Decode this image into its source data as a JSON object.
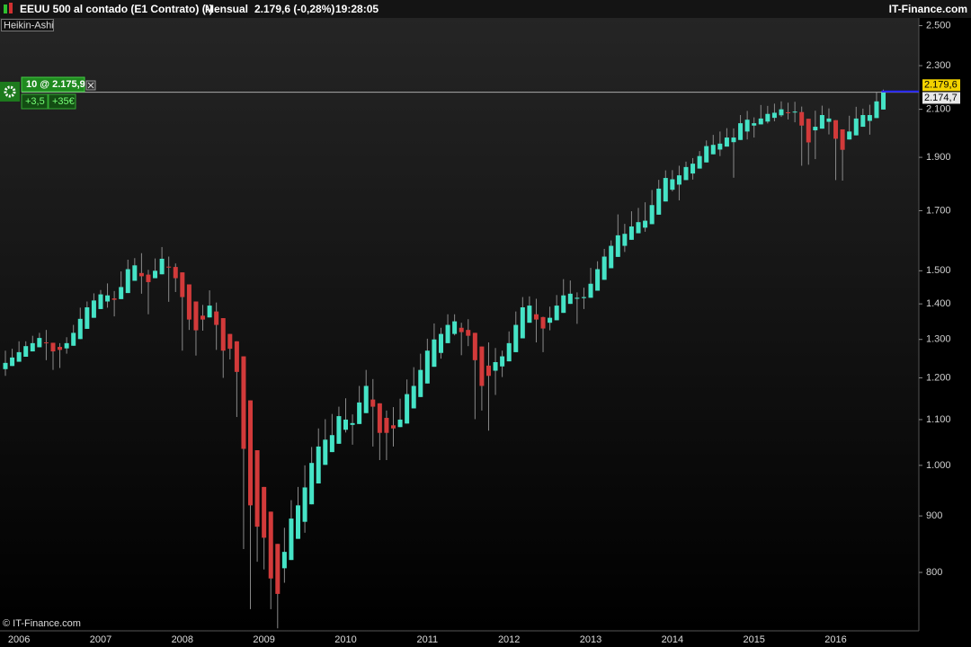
{
  "header": {
    "instrument": "EEUU 500 al contado (E1 Contrato) (-)",
    "period": "Mensual",
    "price": "2.179,6 (-0,28%)",
    "time": "19:28:05",
    "brand": "IT-Finance.com"
  },
  "position": {
    "label": "10 @ 2.175,9",
    "price": 2175.9,
    "points": "+3,5",
    "profit": "+35€"
  },
  "price_tags": [
    {
      "value": 2179.6,
      "label": "2.179,6"
    },
    {
      "value": 2174.7,
      "label": "2.174,7"
    }
  ],
  "watermark": "© IT-Finance.com",
  "chart_data": {
    "type": "candlestick",
    "title": "Heikin-Ashi",
    "log_scale": true,
    "up_color": "#45e3c6",
    "down_color": "#d23a3a",
    "wick_color": "#8a8a8a",
    "ylim": [
      711,
      2545
    ],
    "yticks": [
      {
        "value": 2500,
        "label": "2.500"
      },
      {
        "value": 2300,
        "label": "2.300"
      },
      {
        "value": 2100,
        "label": "2.100"
      },
      {
        "value": 1900,
        "label": "1.900"
      },
      {
        "value": 1700,
        "label": "1.700"
      },
      {
        "value": 1500,
        "label": "1.500"
      },
      {
        "value": 1400,
        "label": "1.400"
      },
      {
        "value": 1300,
        "label": "1.300"
      },
      {
        "value": 1200,
        "label": "1.200"
      },
      {
        "value": 1100,
        "label": "1.100"
      },
      {
        "value": 1000,
        "label": "1.000"
      },
      900,
      800
    ],
    "categories": [
      null,
      null,
      "2006",
      null,
      null,
      null,
      null,
      null,
      null,
      null,
      null,
      null,
      null,
      null,
      "2007",
      null,
      null,
      null,
      null,
      null,
      null,
      null,
      null,
      null,
      null,
      null,
      "2008",
      null,
      null,
      null,
      null,
      null,
      null,
      null,
      null,
      null,
      null,
      null,
      "2009",
      null,
      null,
      null,
      null,
      null,
      null,
      null,
      null,
      null,
      null,
      null,
      "2010",
      null,
      null,
      null,
      null,
      null,
      null,
      null,
      null,
      null,
      null,
      null,
      "2011",
      null,
      null,
      null,
      null,
      null,
      null,
      null,
      null,
      null,
      null,
      null,
      "2012",
      null,
      null,
      null,
      null,
      null,
      null,
      null,
      null,
      null,
      null,
      null,
      "2013",
      null,
      null,
      null,
      null,
      null,
      null,
      null,
      null,
      null,
      null,
      null,
      "2014",
      null,
      null,
      null,
      null,
      null,
      null,
      null,
      null,
      null,
      null,
      null,
      "2015",
      null,
      null,
      null,
      null,
      null,
      null,
      null,
      null,
      null,
      null,
      null,
      "2016",
      null,
      null,
      null,
      null,
      null,
      null,
      null
    ],
    "open": [
      1222,
      1230,
      1241,
      1254,
      1268,
      1279,
      1292,
      1291,
      1280,
      1276,
      1283,
      1301,
      1329,
      1360,
      1385,
      1407,
      1416,
      1414,
      1432,
      1469,
      1493,
      1488,
      1477,
      1489,
      1513,
      1512,
      1495,
      1458,
      1407,
      1366,
      1361,
      1378,
      1359,
      1315,
      1295,
      1255,
      1145,
      1032,
      956,
      908,
      849,
      807,
      821,
      858,
      889,
      922,
      963,
      1001,
      1028,
      1046,
      1077,
      1088,
      1090,
      1115,
      1147,
      1138,
      1104,
      1087,
      1083,
      1091,
      1126,
      1153,
      1186,
      1228,
      1264,
      1290,
      1315,
      1332,
      1326,
      1318,
      1281,
      1231,
      1218,
      1229,
      1242,
      1266,
      1303,
      1346,
      1370,
      1362,
      1346,
      1353,
      1374,
      1400,
      1415,
      1417,
      1418,
      1439,
      1472,
      1508,
      1544,
      1580,
      1600,
      1622,
      1641,
      1653,
      1686,
      1733,
      1776,
      1795,
      1812,
      1837,
      1856,
      1880,
      1912,
      1931,
      1943,
      1961,
      1970,
      2005,
      2030,
      2035,
      2047,
      2063,
      2074,
      2087,
      2086,
      2088,
      2059,
      2010,
      2017,
      2046,
      2053,
      2014,
      1972,
      1989,
      2025,
      2050,
      2062,
      2099
    ],
    "close": [
      1238,
      1252,
      1266,
      1282,
      1290,
      1304,
      1290,
      1268,
      1272,
      1290,
      1318,
      1357,
      1390,
      1410,
      1428,
      1425,
      1412,
      1450,
      1505,
      1517,
      1483,
      1465,
      1500,
      1538,
      1510,
      1477,
      1420,
      1355,
      1325,
      1355,
      1395,
      1340,
      1270,
      1275,
      1215,
      1035,
      920,
      880,
      860,
      790,
      765,
      835,
      895,
      920,
      955,
      1005,
      1040,
      1055,
      1065,
      1108,
      1100,
      1092,
      1140,
      1180,
      1130,
      1070,
      1070,
      1080,
      1100,
      1160,
      1180,
      1220,
      1270,
      1300,
      1315,
      1340,
      1350,
      1320,
      1310,
      1245,
      1180,
      1205,
      1240,
      1255,
      1290,
      1340,
      1390,
      1395,
      1355,
      1330,
      1360,
      1395,
      1425,
      1430,
      1418,
      1420,
      1460,
      1505,
      1545,
      1580,
      1615,
      1620,
      1645,
      1660,
      1665,
      1720,
      1780,
      1820,
      1815,
      1830,
      1862,
      1875,
      1905,
      1945,
      1950,
      1955,
      1980,
      1980,
      2040,
      2055,
      2040,
      2060,
      2080,
      2085,
      2100,
      2085,
      2090,
      2030,
      1960,
      2025,
      2075,
      2060,
      1975,
      1930,
      2005,
      2060,
      2075,
      2075,
      2135,
      2179.6
    ],
    "high": [
      1270,
      1275,
      1295,
      1295,
      1310,
      1318,
      1326,
      1291,
      1290,
      1306,
      1340,
      1389,
      1407,
      1431,
      1441,
      1461,
      1438,
      1498,
      1535,
      1540,
      1556,
      1503,
      1539,
      1576,
      1545,
      1523,
      1495,
      1458,
      1407,
      1397,
      1440,
      1404,
      1359,
      1315,
      1295,
      1255,
      1145,
      1032,
      956,
      908,
      849,
      878,
      930,
      956,
      1000,
      1039,
      1080,
      1101,
      1113,
      1130,
      1150,
      1112,
      1180,
      1220,
      1197,
      1138,
      1121,
      1129,
      1149,
      1196,
      1227,
      1262,
      1302,
      1344,
      1332,
      1370,
      1370,
      1346,
      1356,
      1318,
      1281,
      1292,
      1277,
      1270,
      1322,
      1378,
      1420,
      1422,
      1415,
      1363,
      1392,
      1426,
      1474,
      1470,
      1434,
      1448,
      1509,
      1530,
      1570,
      1598,
      1687,
      1654,
      1698,
      1710,
      1730,
      1775,
      1813,
      1849,
      1850,
      1867,
      1883,
      1897,
      1925,
      1968,
      1991,
      2005,
      2019,
      2018,
      2075,
      2093,
      2065,
      2119,
      2115,
      2125,
      2135,
      2129,
      2133,
      2112,
      2059,
      2094,
      2116,
      2104,
      2053,
      2014,
      2072,
      2111,
      2103,
      2120,
      2177,
      2188
    ],
    "low": [
      1205,
      1230,
      1241,
      1254,
      1268,
      1279,
      1245,
      1220,
      1225,
      1262,
      1283,
      1301,
      1329,
      1360,
      1385,
      1389,
      1364,
      1414,
      1432,
      1469,
      1430,
      1370,
      1477,
      1489,
      1406,
      1435,
      1270,
      1326,
      1257,
      1324,
      1361,
      1272,
      1200,
      1247,
      1106,
      840,
      741,
      818,
      805,
      741,
      712,
      783,
      821,
      858,
      869,
      922,
      963,
      1001,
      1028,
      1046,
      1071,
      1044,
      1090,
      1115,
      1040,
      1011,
      1011,
      1040,
      1083,
      1091,
      1126,
      1153,
      1186,
      1228,
      1249,
      1290,
      1311,
      1258,
      1282,
      1101,
      1121,
      1075,
      1158,
      1202,
      1242,
      1266,
      1303,
      1346,
      1292,
      1266,
      1325,
      1353,
      1374,
      1400,
      1343,
      1385,
      1418,
      1439,
      1472,
      1508,
      1544,
      1560,
      1600,
      1622,
      1627,
      1653,
      1686,
      1733,
      1770,
      1737,
      1812,
      1814,
      1856,
      1880,
      1912,
      1905,
      1943,
      1821,
      1970,
      1972,
      1980,
      2035,
      2039,
      2048,
      2067,
      2056,
      2044,
      1867,
      1871,
      1893,
      2017,
      1993,
      1812,
      1810,
      1972,
      1989,
      2025,
      1992,
      2062,
      2099
    ]
  }
}
